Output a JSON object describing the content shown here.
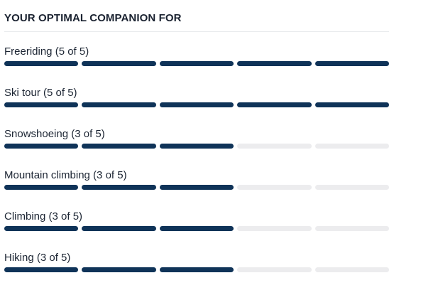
{
  "section": {
    "title": "YOUR OPTIMAL COMPANION FOR"
  },
  "ratings": [
    {
      "label": "Freeriding (5 of 5)",
      "value": 5,
      "max": 5
    },
    {
      "label": "Ski tour (5 of 5)",
      "value": 5,
      "max": 5
    },
    {
      "label": "Snowshoeing (3 of 5)",
      "value": 3,
      "max": 5
    },
    {
      "label": "Mountain climbing (3 of 5)",
      "value": 3,
      "max": 5
    },
    {
      "label": "Climbing (3 of 5)",
      "value": 3,
      "max": 5
    },
    {
      "label": "Hiking (3 of 5)",
      "value": 3,
      "max": 5
    }
  ],
  "colors": {
    "filled": "#0f3358",
    "empty": "#ececee",
    "text": "#1c2533"
  }
}
